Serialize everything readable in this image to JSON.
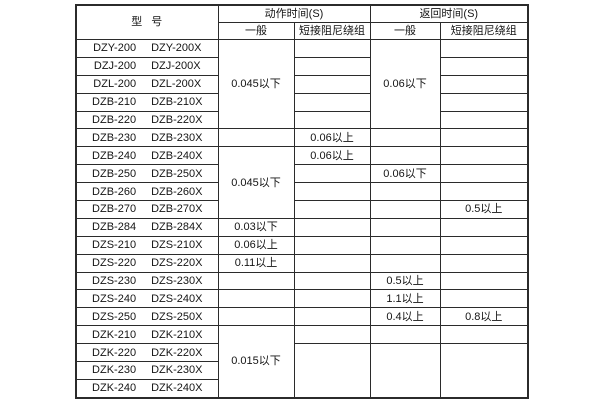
{
  "header": {
    "model": "型  号",
    "action_time": "动作时间(S)",
    "return_time": "返回时间(S)",
    "general": "一般",
    "damping": "短接阻尼绕组"
  },
  "models": [
    [
      "DZY-200",
      "DZY-200X"
    ],
    [
      "DZJ-200",
      "DZJ-200X"
    ],
    [
      "DZL-200",
      "DZL-200X"
    ],
    [
      "DZB-210",
      "DZB-210X"
    ],
    [
      "DZB-220",
      "DZB-220X"
    ],
    [
      "DZB-230",
      "DZB-230X"
    ],
    [
      "DZB-240",
      "DZB-240X"
    ],
    [
      "DZB-250",
      "DZB-250X"
    ],
    [
      "DZB-260",
      "DZB-260X"
    ],
    [
      "DZB-270",
      "DZB-270X"
    ],
    [
      "DZB-284",
      "DZB-284X"
    ],
    [
      "DZS-210",
      "DZS-210X"
    ],
    [
      "DZS-220",
      "DZS-220X"
    ],
    [
      "DZS-230",
      "DZS-230X"
    ],
    [
      "DZS-240",
      "DZS-240X"
    ],
    [
      "DZS-250",
      "DZS-250X"
    ],
    [
      "DZK-210",
      "DZK-210X"
    ],
    [
      "DZK-220",
      "DZK-220X"
    ],
    [
      "DZK-230",
      "DZK-230X"
    ],
    [
      "DZK-240",
      "DZK-240X"
    ]
  ],
  "values": {
    "action_general": {
      "dzy200_dzb220": "0.045以下",
      "dzb240_dzb270": "0.045以下",
      "dzb284": "0.03以下",
      "dzs210": "0.06以上",
      "dzs220": "0.11以上",
      "dzk210_dzk240": "0.015以下"
    },
    "action_damping": {
      "dzb230": "0.06以上",
      "dzb240": "0.06以上"
    },
    "return_general": {
      "dzy200_dzb220": "0.06以下",
      "dzb250": "0.06以下",
      "dzs230": "0.5以上",
      "dzs240": "1.1以上",
      "dzs250": "0.4以上"
    },
    "return_damping": {
      "dzb270": "0.5以上",
      "dzs250": "0.8以上"
    }
  },
  "colors": {
    "border": "#2b2b2b",
    "text": "#141414",
    "background": "#ffffff"
  }
}
